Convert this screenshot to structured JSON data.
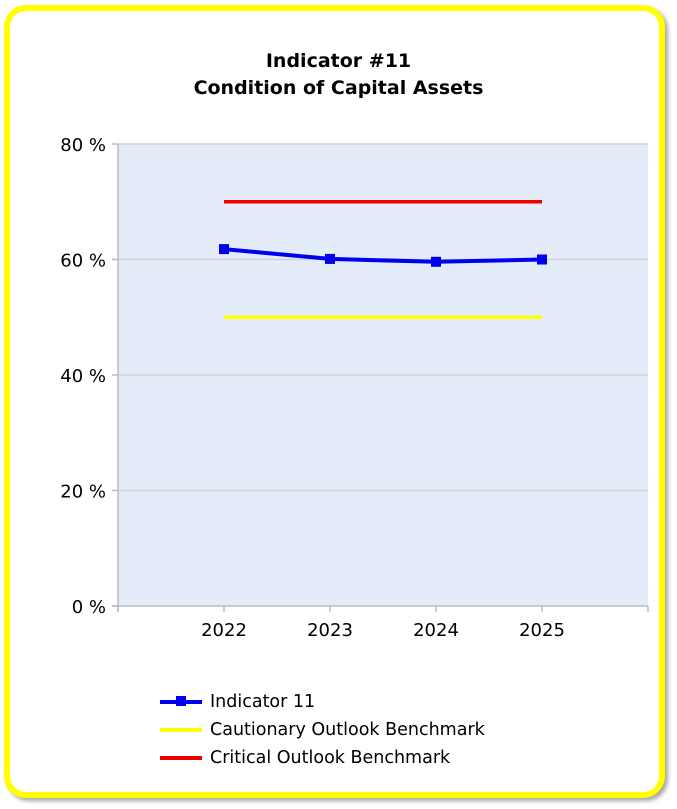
{
  "title_lines": [
    "Indicator #11",
    "Condition of Capital Assets"
  ],
  "chart_data": {
    "type": "line",
    "title": "Indicator #11 Condition of Capital Assets",
    "xlabel": "",
    "ylabel": "",
    "categories": [
      "2022",
      "2023",
      "2024",
      "2025"
    ],
    "ylim": [
      0,
      80
    ],
    "yticks": [
      0,
      20,
      40,
      60,
      80
    ],
    "ytick_labels": [
      "0 %",
      "20 %",
      "40 %",
      "60 %",
      "80 %"
    ],
    "grid": true,
    "legend_position": "bottom",
    "series": [
      {
        "name": "Indicator 11",
        "values": [
          61.8,
          60.1,
          59.6,
          60.0
        ],
        "color": "#0000ee",
        "marker": "square"
      },
      {
        "name": "Cautionary Outlook Benchmark",
        "values": [
          50,
          50,
          50,
          50
        ],
        "color": "#ffff00",
        "marker": "none"
      },
      {
        "name": "Critical Outlook Benchmark",
        "values": [
          70,
          70,
          70,
          70
        ],
        "color": "#ee0000",
        "marker": "none"
      }
    ]
  },
  "colors": {
    "frame_border": "#ffff00",
    "plot_background": "#e3ecf8",
    "gridline": "#cfd3d8",
    "axis": "#b8bcc2"
  }
}
